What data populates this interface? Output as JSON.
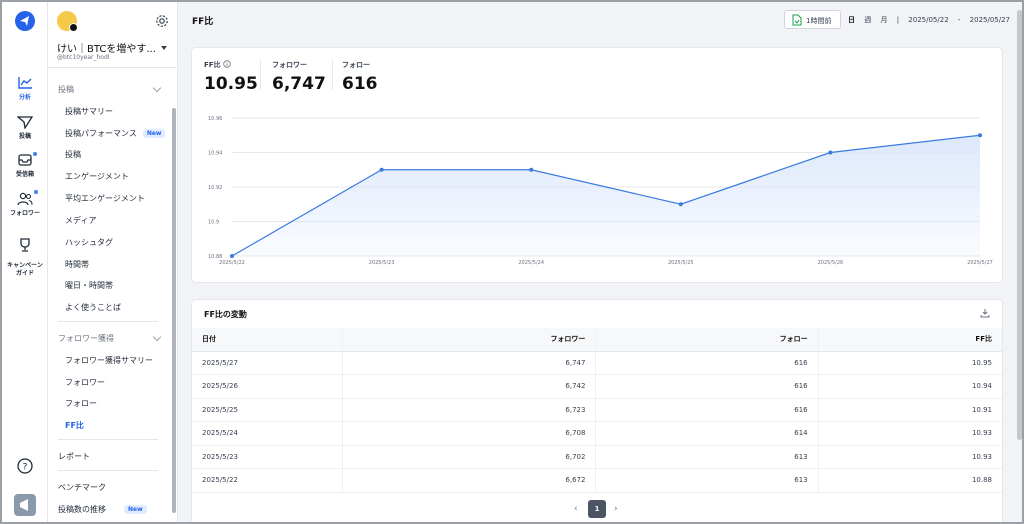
{
  "nav_rail": {
    "items": [
      {
        "label": "分析",
        "icon": "chart-line-icon",
        "active": true
      },
      {
        "label": "投稿",
        "icon": "send-icon",
        "active": false
      },
      {
        "label": "受信箱",
        "icon": "inbox-icon",
        "active": false,
        "dot": true
      },
      {
        "label": "フォロワー",
        "icon": "users-icon",
        "active": false,
        "dot": true
      },
      {
        "label": "キャンペーン\nガイド",
        "icon": "trophy-icon",
        "active": false
      }
    ]
  },
  "account": {
    "name": "けい｜BTCを増やす...",
    "handle": "@btc10year_hodl"
  },
  "sidebar": {
    "section_posts": "投稿",
    "posts_items": [
      {
        "label": "投稿サマリー"
      },
      {
        "label": "投稿パフォーマンス",
        "badge": "New"
      },
      {
        "label": "投稿"
      },
      {
        "label": "エンゲージメント"
      },
      {
        "label": "平均エンゲージメント"
      },
      {
        "label": "メディア"
      },
      {
        "label": "ハッシュタグ"
      },
      {
        "label": "時間帯"
      },
      {
        "label": "曜日・時間帯"
      },
      {
        "label": "よく使うことば"
      }
    ],
    "section_followers": "フォロワー獲得",
    "followers_items": [
      {
        "label": "フォロワー獲得サマリー"
      },
      {
        "label": "フォロワー"
      },
      {
        "label": "フォロー"
      },
      {
        "label": "FF比",
        "active": true
      }
    ],
    "report": "レポート",
    "benchmark": "ベンチマーク",
    "post_count_trend": "投稿数の推移",
    "post_count_badge": "New"
  },
  "header": {
    "title": "FF比",
    "refresh_label": "1時間前",
    "period_day": "日",
    "period_week": "週",
    "period_month": "月",
    "separator": "|",
    "date_from": "2025/05/22",
    "date_dash": "-",
    "date_to": "2025/05/27"
  },
  "metrics": [
    {
      "label": "FF比",
      "value": "10.95",
      "info_icon": true
    },
    {
      "label": "フォロワー",
      "value": "6,747"
    },
    {
      "label": "フォロー",
      "value": "616"
    }
  ],
  "chart_data": {
    "type": "area",
    "x": [
      "2025/5/22",
      "2025/5/23",
      "2025/5/24",
      "2025/5/25",
      "2025/5/26",
      "2025/5/27"
    ],
    "series": [
      {
        "values": [
          10.88,
          10.93,
          10.93,
          10.91,
          10.94,
          10.95
        ]
      }
    ],
    "y_ticks": [
      "10.88",
      "10.9",
      "10.92",
      "10.94",
      "10.96"
    ],
    "ylim": [
      10.88,
      10.96
    ],
    "grid": true,
    "color": "#3b7be0",
    "fill": "#dbe7fb"
  },
  "table": {
    "title": "FF比の変動",
    "columns": [
      "日付",
      "フォロワー",
      "フォロー",
      "FF比"
    ],
    "rows": [
      [
        "2025/5/27",
        "6,747",
        "616",
        "10.95"
      ],
      [
        "2025/5/26",
        "6,742",
        "616",
        "10.94"
      ],
      [
        "2025/5/25",
        "6,723",
        "616",
        "10.91"
      ],
      [
        "2025/5/24",
        "6,708",
        "614",
        "10.93"
      ],
      [
        "2025/5/23",
        "6,702",
        "613",
        "10.93"
      ],
      [
        "2025/5/22",
        "6,672",
        "613",
        "10.88"
      ]
    ]
  },
  "pagination": {
    "prev": "‹",
    "current": "1",
    "next": "›"
  }
}
